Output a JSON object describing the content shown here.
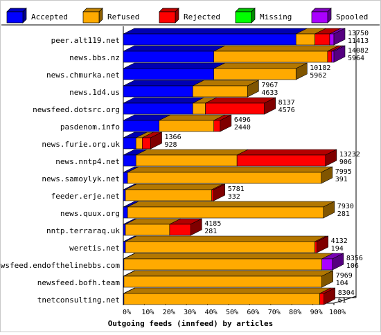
{
  "chart_data": {
    "type": "bar",
    "stacked": true,
    "orientation": "horizontal",
    "percent_stacked": true,
    "title": "Outgoing feeds (innfeed) by articles",
    "xlim": [
      0,
      100
    ],
    "x_ticks": [
      "0%",
      "10%",
      "20%",
      "30%",
      "40%",
      "50%",
      "60%",
      "70%",
      "80%",
      "90%",
      "100%"
    ],
    "legend_position": "top",
    "grid": false,
    "series": [
      {
        "name": "Accepted",
        "color": "#0000ff",
        "values": [
          82,
          43,
          43,
          33,
          33,
          17,
          6,
          6,
          2,
          1,
          2,
          1,
          1,
          0.3,
          0.3,
          0.3
        ]
      },
      {
        "name": "Refused",
        "color": "#ffaa00",
        "values": [
          9,
          54,
          39,
          26,
          6,
          26,
          3,
          48,
          92,
          41,
          93,
          21,
          90,
          94,
          94,
          93
        ]
      },
      {
        "name": "Rejected",
        "color": "#ff0000",
        "values": [
          7,
          2,
          0,
          0,
          28,
          3,
          4,
          42,
          0,
          1,
          0,
          10,
          1,
          0,
          0,
          2
        ]
      },
      {
        "name": "Missing",
        "color": "#00ff00",
        "values": [
          0,
          0,
          0,
          0,
          0,
          0,
          0,
          0,
          0,
          0,
          0,
          0,
          0,
          0,
          0,
          0
        ]
      },
      {
        "name": "Spooled",
        "color": "#aa00ff",
        "values": [
          2,
          1,
          0,
          0,
          0,
          0,
          0,
          0,
          0,
          0,
          0,
          0,
          0,
          5,
          0,
          0
        ]
      }
    ],
    "rows": [
      {
        "label": "peer.alt119.net",
        "offered": "13750",
        "accepted": "11413"
      },
      {
        "label": "news.bbs.nz",
        "offered": "14082",
        "accepted": "5964"
      },
      {
        "label": "news.chmurka.net",
        "offered": "10182",
        "accepted": "5962"
      },
      {
        "label": "news.1d4.us",
        "offered": "7967",
        "accepted": "4633"
      },
      {
        "label": "newsfeed.dotsrc.org",
        "offered": "8137",
        "accepted": "4576"
      },
      {
        "label": "pasdenom.info",
        "offered": "6496",
        "accepted": "2440"
      },
      {
        "label": "news.furie.org.uk",
        "offered": "1366",
        "accepted": "928"
      },
      {
        "label": "news.nntp4.net",
        "offered": "13232",
        "accepted": "906"
      },
      {
        "label": "news.samoylyk.net",
        "offered": "7995",
        "accepted": "391"
      },
      {
        "label": "feeder.erje.net",
        "offered": "5781",
        "accepted": "332"
      },
      {
        "label": "news.quux.org",
        "offered": "7930",
        "accepted": "281"
      },
      {
        "label": "nntp.terraraq.uk",
        "offered": "4185",
        "accepted": "281"
      },
      {
        "label": "weretis.net",
        "offered": "4132",
        "accepted": "194"
      },
      {
        "label": "newsfeed.endofthelinebbs.com",
        "offered": "8356",
        "accepted": "106"
      },
      {
        "label": "newsfeed.bofh.team",
        "offered": "7969",
        "accepted": "104"
      },
      {
        "label": "tnetconsulting.net",
        "offered": "8304",
        "accepted": "61"
      }
    ]
  }
}
